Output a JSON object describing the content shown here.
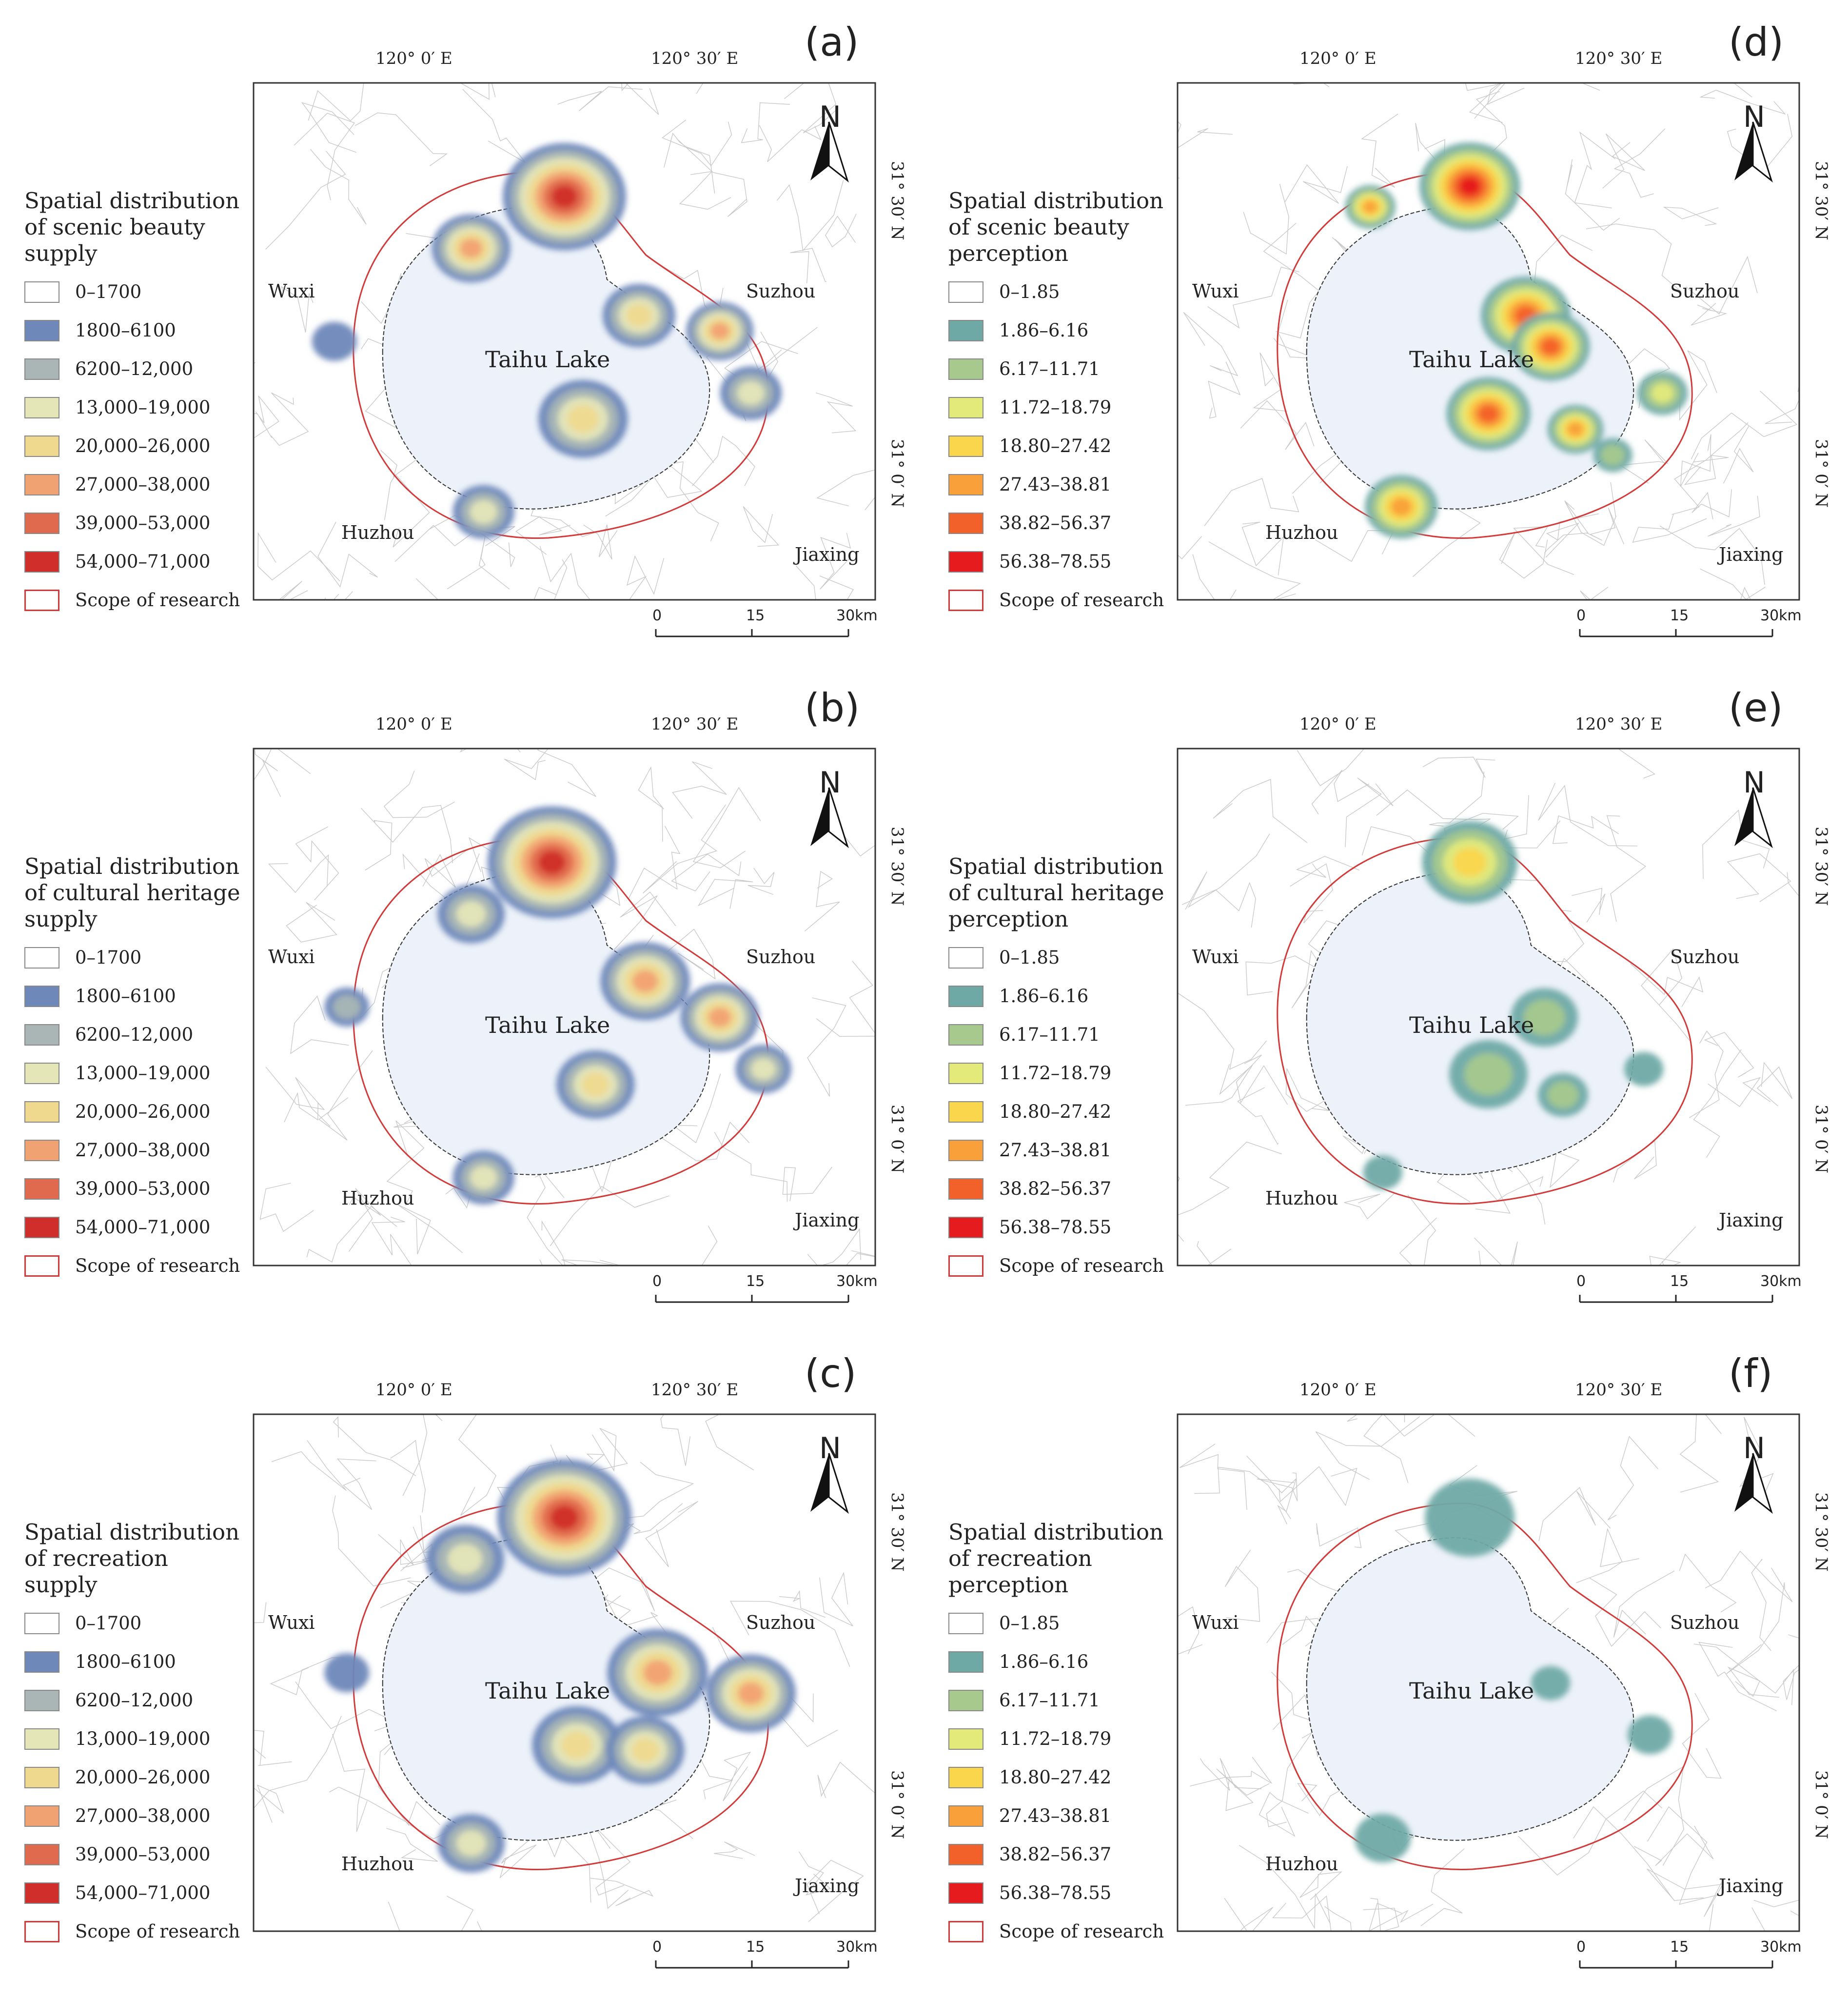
{
  "colors": {
    "supply": [
      "#ffffff",
      "#6e88b9",
      "#a9b6b5",
      "#e4e6b8",
      "#efd98e",
      "#f1a272",
      "#e06a4e",
      "#cf2e2a"
    ],
    "perception": [
      "#ffffff",
      "#6fa9a6",
      "#a7c98e",
      "#e3ea7a",
      "#fad64d",
      "#f9a03a",
      "#f3612a",
      "#e51b1d"
    ],
    "scope": "#d23a3a"
  },
  "supply_classes": [
    "0–1700",
    "1800–6100",
    "6200–12,000",
    "13,000–19,000",
    "20,000–26,000",
    "27,000–38,000",
    "39,000–53,000",
    "54,000–71,000"
  ],
  "perception_classes": [
    "0–1.85",
    "1.86–6.16",
    "6.17–11.71",
    "11.72–18.79",
    "18.80–27.42",
    "27.43–38.81",
    "38.82–56.37",
    "56.38–78.55"
  ],
  "scope_label": "Scope of research",
  "coords": {
    "lon1": "120° 0′ E",
    "lon2": "120° 30′ E",
    "lat1": "31° 30′ N",
    "lat2": "31° 0′ N"
  },
  "cities": {
    "wuxi": "Wuxi",
    "suzhou": "Suzhou",
    "huzhou": "Huzhou",
    "jiaxing": "Jiaxing",
    "lake": "Taihu Lake"
  },
  "north": "N",
  "scale": {
    "zero": "0",
    "mid": "15",
    "end": "30km"
  },
  "panels": [
    {
      "label": "(a)",
      "title": [
        "Spatial distribution",
        "of scenic beauty",
        "supply"
      ],
      "type": "supply",
      "blobs": [
        [
          0.5,
          0.22,
          110,
          7
        ],
        [
          0.35,
          0.32,
          70,
          5
        ],
        [
          0.62,
          0.45,
          65,
          4
        ],
        [
          0.75,
          0.48,
          60,
          5
        ],
        [
          0.53,
          0.65,
          80,
          4
        ],
        [
          0.37,
          0.83,
          55,
          3
        ],
        [
          0.8,
          0.6,
          55,
          3
        ],
        [
          0.13,
          0.5,
          40,
          1
        ]
      ]
    },
    {
      "label": "(d)",
      "title": [
        "Spatial distribution",
        "of scenic beauty",
        "perception"
      ],
      "type": "perception",
      "blobs": [
        [
          0.47,
          0.2,
          90,
          7
        ],
        [
          0.31,
          0.24,
          45,
          5
        ],
        [
          0.56,
          0.45,
          80,
          6
        ],
        [
          0.6,
          0.51,
          70,
          6
        ],
        [
          0.5,
          0.64,
          75,
          6
        ],
        [
          0.64,
          0.67,
          50,
          5
        ],
        [
          0.36,
          0.82,
          65,
          5
        ],
        [
          0.78,
          0.6,
          45,
          3
        ],
        [
          0.7,
          0.72,
          35,
          2
        ]
      ]
    },
    {
      "label": "(b)",
      "title": [
        "Spatial distribution",
        "of cultural heritage",
        "supply"
      ],
      "type": "supply",
      "blobs": [
        [
          0.48,
          0.22,
          115,
          7
        ],
        [
          0.35,
          0.32,
          60,
          3
        ],
        [
          0.63,
          0.45,
          80,
          5
        ],
        [
          0.75,
          0.52,
          70,
          5
        ],
        [
          0.55,
          0.65,
          70,
          4
        ],
        [
          0.37,
          0.83,
          55,
          3
        ],
        [
          0.15,
          0.5,
          40,
          2
        ],
        [
          0.82,
          0.62,
          50,
          3
        ]
      ]
    },
    {
      "label": "(e)",
      "title": [
        "Spatial distribution",
        "of cultural heritage",
        "perception"
      ],
      "type": "perception",
      "blobs": [
        [
          0.47,
          0.22,
          85,
          4
        ],
        [
          0.59,
          0.52,
          60,
          2
        ],
        [
          0.5,
          0.63,
          70,
          2
        ],
        [
          0.62,
          0.67,
          45,
          2
        ],
        [
          0.75,
          0.62,
          35,
          1
        ],
        [
          0.33,
          0.82,
          35,
          1
        ]
      ]
    },
    {
      "label": "(c)",
      "title": [
        "Spatial distribution",
        "of  recreation",
        "supply"
      ],
      "type": "supply",
      "blobs": [
        [
          0.5,
          0.2,
          120,
          7
        ],
        [
          0.34,
          0.28,
          70,
          3
        ],
        [
          0.65,
          0.5,
          90,
          5
        ],
        [
          0.8,
          0.54,
          80,
          5
        ],
        [
          0.52,
          0.64,
          80,
          4
        ],
        [
          0.63,
          0.65,
          70,
          4
        ],
        [
          0.35,
          0.83,
          60,
          3
        ],
        [
          0.15,
          0.5,
          40,
          1
        ]
      ]
    },
    {
      "label": "(f)",
      "title": [
        "Spatial distribution",
        "of  recreation",
        "perception"
      ],
      "type": "perception",
      "blobs": [
        [
          0.47,
          0.2,
          80,
          1
        ],
        [
          0.6,
          0.52,
          35,
          1
        ],
        [
          0.76,
          0.62,
          40,
          1
        ],
        [
          0.33,
          0.82,
          50,
          1
        ]
      ]
    }
  ]
}
